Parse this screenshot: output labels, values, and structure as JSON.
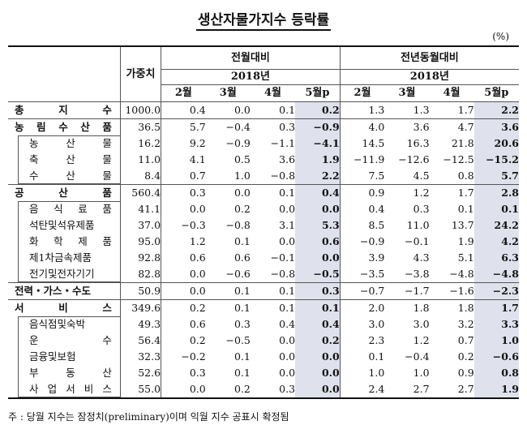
{
  "title": "생산자물가지수 등락률",
  "unit": "(%)",
  "header": {
    "weight_label": "가중치",
    "group_mom": "전월대비",
    "group_yoy": "전년동월대비",
    "year": "2018년",
    "months": [
      "2월",
      "3월",
      "4월",
      "5월p"
    ]
  },
  "rows": [
    {
      "name": "총 지 수",
      "kind": "cat",
      "weight": "1000.0",
      "mom": [
        "0.4",
        "0.0",
        "0.1",
        "0.2"
      ],
      "yoy": [
        "1.3",
        "1.3",
        "1.7",
        "2.2"
      ]
    },
    {
      "name": "농 림 수 산 품",
      "kind": "cat",
      "weight": "36.5",
      "mom": [
        "5.7",
        "−0.4",
        "0.3",
        "−0.9"
      ],
      "yoy": [
        "4.0",
        "3.6",
        "4.7",
        "3.6"
      ]
    },
    {
      "name": "농 산 물",
      "kind": "sub",
      "weight": "16.2",
      "mom": [
        "9.2",
        "−0.9",
        "−1.1",
        "−4.1"
      ],
      "yoy": [
        "14.5",
        "16.3",
        "21.8",
        "20.6"
      ]
    },
    {
      "name": "축 산 물",
      "kind": "sub",
      "weight": "11.0",
      "mom": [
        "4.1",
        "0.5",
        "3.6",
        "1.9"
      ],
      "yoy": [
        "−11.9",
        "−12.6",
        "−12.5",
        "−15.2"
      ]
    },
    {
      "name": "수 산 물",
      "kind": "sub",
      "weight": "8.4",
      "mom": [
        "0.7",
        "1.0",
        "−0.8",
        "2.2"
      ],
      "yoy": [
        "7.5",
        "4.5",
        "0.8",
        "5.7"
      ]
    },
    {
      "name": "공 산 품",
      "kind": "cat",
      "weight": "560.4",
      "mom": [
        "0.3",
        "0.0",
        "0.1",
        "0.4"
      ],
      "yoy": [
        "0.9",
        "1.2",
        "1.7",
        "2.8"
      ]
    },
    {
      "name": "음 식 료 품",
      "kind": "sub",
      "weight": "41.1",
      "mom": [
        "0.0",
        "0.2",
        "0.0",
        "0.0"
      ],
      "yoy": [
        "0.4",
        "0.3",
        "0.1",
        "0.1"
      ]
    },
    {
      "name": "석탄및석유제품",
      "kind": "sub",
      "weight": "37.0",
      "mom": [
        "−0.3",
        "−0.8",
        "3.1",
        "5.3"
      ],
      "yoy": [
        "8.5",
        "11.0",
        "13.7",
        "24.2"
      ]
    },
    {
      "name": "화 학 제 품",
      "kind": "sub",
      "weight": "95.0",
      "mom": [
        "1.2",
        "0.1",
        "0.0",
        "0.6"
      ],
      "yoy": [
        "−0.9",
        "−0.1",
        "1.9",
        "4.2"
      ]
    },
    {
      "name": "제1차금속제품",
      "kind": "sub",
      "weight": "92.8",
      "mom": [
        "0.6",
        "0.6",
        "−0.1",
        "0.0"
      ],
      "yoy": [
        "3.9",
        "4.3",
        "5.1",
        "6.3"
      ]
    },
    {
      "name": "전기및전자기기",
      "kind": "sub",
      "weight": "82.8",
      "mom": [
        "0.0",
        "−0.6",
        "−0.8",
        "−0.5"
      ],
      "yoy": [
        "−3.5",
        "−3.8",
        "−4.8",
        "−4.8"
      ]
    },
    {
      "name": "전력・가스・수도",
      "kind": "cat",
      "weight": "50.9",
      "mom": [
        "0.0",
        "0.1",
        "0.1",
        "0.3"
      ],
      "yoy": [
        "−0.7",
        "−1.7",
        "−1.6",
        "−2.3"
      ]
    },
    {
      "name": "서 비 스",
      "kind": "cat",
      "weight": "349.6",
      "mom": [
        "0.2",
        "0.1",
        "0.1",
        "0.1"
      ],
      "yoy": [
        "2.0",
        "1.8",
        "1.8",
        "1.7"
      ]
    },
    {
      "name": "음식점및숙박",
      "kind": "sub",
      "weight": "49.3",
      "mom": [
        "0.6",
        "0.3",
        "0.4",
        "0.4"
      ],
      "yoy": [
        "3.0",
        "3.0",
        "3.2",
        "3.3"
      ]
    },
    {
      "name": "운 수",
      "kind": "sub",
      "weight": "56.4",
      "mom": [
        "0.2",
        "−0.5",
        "0.0",
        "0.2"
      ],
      "yoy": [
        "2.3",
        "1.2",
        "0.7",
        "1.0"
      ]
    },
    {
      "name": "금융및보험",
      "kind": "sub",
      "weight": "32.3",
      "mom": [
        "−0.2",
        "0.1",
        "0.0",
        "0.0"
      ],
      "yoy": [
        "0.1",
        "−0.4",
        "0.2",
        "−0.6"
      ]
    },
    {
      "name": "부 동 산",
      "kind": "sub",
      "weight": "52.6",
      "mom": [
        "0.3",
        "0.1",
        "0.0",
        "0.0"
      ],
      "yoy": [
        "1.0",
        "1.0",
        "0.9",
        "0.8"
      ]
    },
    {
      "name": "사 업 서 비 스",
      "kind": "sub",
      "weight": "55.0",
      "mom": [
        "0.0",
        "0.2",
        "0.3",
        "0.0"
      ],
      "yoy": [
        "2.4",
        "2.7",
        "2.7",
        "1.9"
      ]
    }
  ],
  "footnote": "주 : 당월 지수는 잠정치(preliminary)이며 익월 지수 공표시 확정됨"
}
